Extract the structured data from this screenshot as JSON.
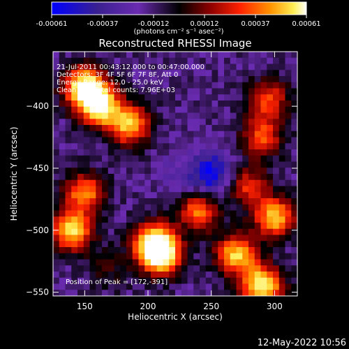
{
  "chart_data": {
    "type": "heatmap",
    "title": "Reconstructed RHESSI Image",
    "xlabel": "Heliocentric X (arcsec)",
    "ylabel": "Heliocentric Y (arcsec)",
    "xlim": [
      125,
      318
    ],
    "ylim": [
      -553,
      -356
    ],
    "x_ticks": [
      150,
      200,
      250,
      300
    ],
    "y_ticks": [
      -400,
      -450,
      -500,
      -550
    ],
    "colorbar": {
      "range": [
        -0.00061,
        0.00061
      ],
      "ticks": [
        "-0.00061",
        "-0.00037",
        "-0.00012",
        "0.00012",
        "0.00037",
        "0.00061"
      ],
      "units_label": "(photons cm⁻² s⁻¹ asec⁻²)",
      "colors": [
        "#0000ff",
        "#3a2090",
        "#6a2bb0",
        "#000000",
        "#8a0000",
        "#ff2200",
        "#ff9500",
        "#ffee55",
        "#ffffff"
      ]
    },
    "annotations": [
      "21-Jul-2011 00:43:12.000 to 00:47:00.000",
      "Detectors: 3F 4F 5F 6F 7F 8F, Att 0",
      "Energy Range: 12.0 - 25.0 keV",
      "Clean 100 Total counts: 7.96E+03"
    ],
    "peak_label": "Position of Peak = [172,-391]",
    "peak": [
      172,
      -391
    ],
    "bright_regions": [
      {
        "x": 150,
        "y": -385,
        "value": 0.00061
      },
      {
        "x": 162,
        "y": -400,
        "value": 0.00052
      },
      {
        "x": 185,
        "y": -415,
        "value": 0.0004
      },
      {
        "x": 140,
        "y": -500,
        "value": 0.00045
      },
      {
        "x": 150,
        "y": -470,
        "value": 0.0003
      },
      {
        "x": 205,
        "y": -510,
        "value": 0.00048
      },
      {
        "x": 210,
        "y": -520,
        "value": 0.0005
      },
      {
        "x": 270,
        "y": -520,
        "value": 0.00042
      },
      {
        "x": 290,
        "y": -545,
        "value": 0.00055
      },
      {
        "x": 300,
        "y": -490,
        "value": 0.0004
      },
      {
        "x": 290,
        "y": -425,
        "value": 0.0002
      },
      {
        "x": 295,
        "y": -395,
        "value": 0.00018
      },
      {
        "x": 240,
        "y": -485,
        "value": 0.00025
      },
      {
        "x": 280,
        "y": -465,
        "value": 0.00015
      }
    ],
    "dim_regions": [
      {
        "x": 250,
        "y": -455,
        "value": -0.00061
      },
      {
        "x": 225,
        "y": -455,
        "value": -0.00035
      },
      {
        "x": 170,
        "y": -530,
        "value": -0.00012
      }
    ]
  },
  "timestamp": "12-May-2022 10:56"
}
